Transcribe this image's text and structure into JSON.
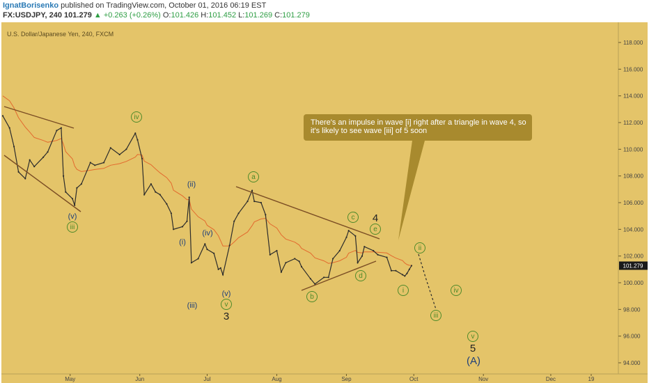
{
  "header": {
    "author": "IgnatBorisenko",
    "published_text": "published on TradingView.com, October 01, 2016 06:19 EST",
    "symbol_interval": "FX:USDJPY, 240",
    "last": "101.279",
    "change": "+0.263 (+0.26%)",
    "open_label": "O:",
    "open": "101.426",
    "high_label": "H:",
    "high": "101.452",
    "low_label": "L:",
    "low": "101.269",
    "close_label": "C:",
    "close": "101.279"
  },
  "chart": {
    "watermark": "U.S. Dollar/Japanese Yen, 240, FXCM",
    "last_price_tag": "101.279",
    "callout": "There's an impulse in wave [i] right after a triangle in wave 4, so it's likely to see wave [iii] of 5 soon",
    "colors": {
      "background": "#e4c469",
      "candles": "#2b2b2b",
      "moving_average": "#e36a2e",
      "trendlines": "#7a4d24",
      "callout": "#a88a2e",
      "wave_green": "#4e8a2a",
      "wave_navy": "#1e3f7a"
    },
    "wave_labels": {
      "g_iv": "iv",
      "g_iii": "iii",
      "n_v1": "(v)",
      "n_ii": "(ii)",
      "n_i": "(i)",
      "n_iv": "(iv)",
      "n_iii": "(iii)",
      "n_v2": "(v)",
      "g_v1": "v",
      "b_3": "3",
      "g_a": "a",
      "g_b": "b",
      "g_c": "c",
      "g_d": "d",
      "g_e": "e",
      "b_4": "4",
      "g_i2": "i",
      "g_ii2": "ii",
      "g_iii2": "iii",
      "g_iv2": "iv",
      "g_v2": "v",
      "b_5": "5",
      "n_A": "(A)"
    }
  },
  "chart_data": {
    "type": "line",
    "title": "U.S. Dollar/Japanese Yen, 240, FXCM",
    "xlabel": "",
    "ylabel": "",
    "x_ticks": [
      "May",
      "Jun",
      "Jul",
      "Aug",
      "Sep",
      "Oct",
      "Nov",
      "Dec",
      "19"
    ],
    "y_ticks": [
      "118.000",
      "116.000",
      "114.000",
      "112.000",
      "110.000",
      "108.000",
      "106.000",
      "104.000",
      "102.000",
      "100.000",
      "98.000",
      "96.000",
      "94.000"
    ],
    "ylim": [
      93.5,
      119.5
    ],
    "grid": false,
    "series": [
      {
        "name": "",
        "points": [
          [
            "2016-04-01",
            112.5
          ],
          [
            "2016-04-04",
            111.6
          ],
          [
            "2016-04-06",
            110.2
          ],
          [
            "2016-04-08",
            108.3
          ],
          [
            "2016-04-11",
            107.8
          ],
          [
            "2016-04-13",
            109.2
          ],
          [
            "2016-04-15",
            108.7
          ],
          [
            "2016-04-19",
            109.4
          ],
          [
            "2016-04-21",
            109.8
          ],
          [
            "2016-04-25",
            111.4
          ],
          [
            "2016-04-27",
            111.6
          ],
          [
            "2016-04-28",
            108.0
          ],
          [
            "2016-04-29",
            106.8
          ],
          [
            "2016-05-02",
            106.3
          ],
          [
            "2016-05-03",
            105.8
          ],
          [
            "2016-05-04",
            107.1
          ],
          [
            "2016-05-06",
            107.4
          ],
          [
            "2016-05-10",
            109.0
          ],
          [
            "2016-05-12",
            108.8
          ],
          [
            "2016-05-16",
            109.0
          ],
          [
            "2016-05-19",
            110.1
          ],
          [
            "2016-05-23",
            109.6
          ],
          [
            "2016-05-26",
            110.0
          ],
          [
            "2016-05-30",
            111.2
          ],
          [
            "2016-05-31",
            110.7
          ],
          [
            "2016-06-02",
            109.3
          ],
          [
            "2016-06-03",
            106.6
          ],
          [
            "2016-06-06",
            107.4
          ],
          [
            "2016-06-08",
            106.8
          ],
          [
            "2016-06-10",
            106.6
          ],
          [
            "2016-06-13",
            105.9
          ],
          [
            "2016-06-15",
            105.2
          ],
          [
            "2016-06-16",
            104.0
          ],
          [
            "2016-06-20",
            104.2
          ],
          [
            "2016-06-22",
            104.6
          ],
          [
            "2016-06-23",
            106.4
          ],
          [
            "2016-06-24",
            101.5
          ],
          [
            "2016-06-27",
            101.8
          ],
          [
            "2016-06-30",
            102.9
          ],
          [
            "2016-07-01",
            102.5
          ],
          [
            "2016-07-04",
            102.2
          ],
          [
            "2016-07-06",
            101.0
          ],
          [
            "2016-07-07",
            101.1
          ],
          [
            "2016-07-08",
            100.6
          ],
          [
            "2016-07-11",
            102.8
          ],
          [
            "2016-07-13",
            104.6
          ],
          [
            "2016-07-15",
            105.2
          ],
          [
            "2016-07-19",
            106.1
          ],
          [
            "2016-07-21",
            106.9
          ],
          [
            "2016-07-22",
            106.1
          ],
          [
            "2016-07-25",
            106.0
          ],
          [
            "2016-07-27",
            105.1
          ],
          [
            "2016-07-29",
            102.1
          ],
          [
            "2016-08-01",
            102.4
          ],
          [
            "2016-08-03",
            100.8
          ],
          [
            "2016-08-05",
            101.5
          ],
          [
            "2016-08-09",
            101.8
          ],
          [
            "2016-08-11",
            101.6
          ],
          [
            "2016-08-12",
            101.2
          ],
          [
            "2016-08-16",
            100.3
          ],
          [
            "2016-08-18",
            99.9
          ],
          [
            "2016-08-22",
            100.4
          ],
          [
            "2016-08-24",
            100.4
          ],
          [
            "2016-08-26",
            101.8
          ],
          [
            "2016-08-29",
            102.4
          ],
          [
            "2016-09-01",
            103.4
          ],
          [
            "2016-09-02",
            103.9
          ],
          [
            "2016-09-05",
            103.5
          ],
          [
            "2016-09-06",
            101.5
          ],
          [
            "2016-09-08",
            102.0
          ],
          [
            "2016-09-09",
            102.7
          ],
          [
            "2016-09-13",
            102.4
          ],
          [
            "2016-09-15",
            102.1
          ],
          [
            "2016-09-19",
            101.9
          ],
          [
            "2016-09-21",
            100.9
          ],
          [
            "2016-09-23",
            100.9
          ],
          [
            "2016-09-26",
            100.6
          ],
          [
            "2016-09-27",
            100.5
          ],
          [
            "2016-09-28",
            100.7
          ],
          [
            "2016-09-29",
            101.0
          ],
          [
            "2016-09-30",
            101.28
          ]
        ]
      }
    ]
  }
}
